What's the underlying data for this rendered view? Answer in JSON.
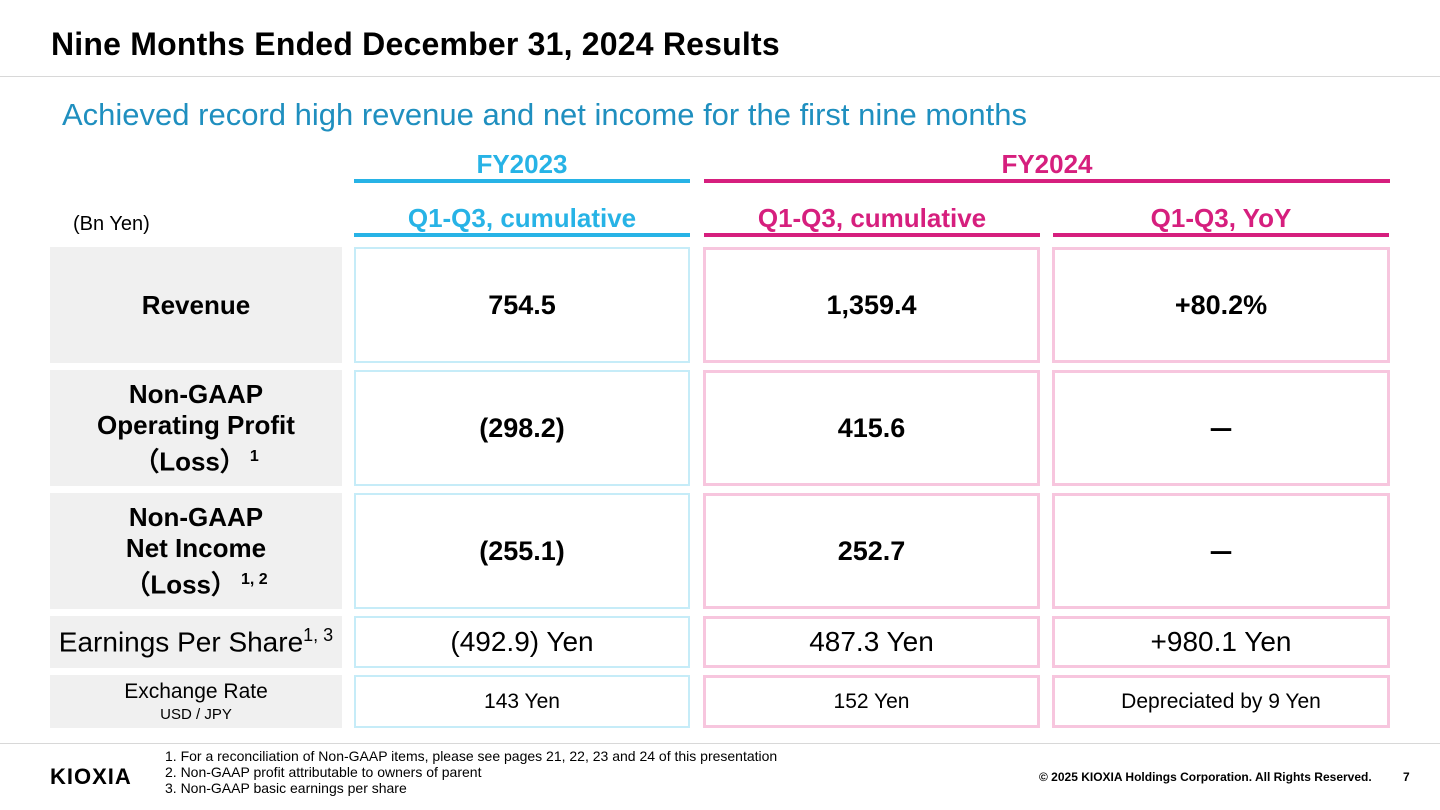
{
  "title": "Nine Months Ended December 31, 2024 Results",
  "subtitle": "Achieved record high revenue and net income for the first nine months",
  "unit_label": "(Bn Yen)",
  "group_headers": {
    "fy2023": "FY2023",
    "fy2024": "FY2024"
  },
  "column_headers": {
    "fy2023_cum": "Q1-Q3, cumulative",
    "fy2024_cum": "Q1-Q3, cumulative",
    "fy2024_yoy": "Q1-Q3, YoY"
  },
  "rows": [
    {
      "label": [
        "Revenue"
      ],
      "sup": "",
      "fy2023": "754.5",
      "fy2024": "1,359.4",
      "yoy": "+80.2%"
    },
    {
      "label": [
        "Non-GAAP",
        "Operating Profit",
        "（Loss）"
      ],
      "sup": "1",
      "fy2023": "(298.2)",
      "fy2024": "415.6",
      "yoy": "－"
    },
    {
      "label": [
        "Non-GAAP",
        "Net Income",
        "（Loss）"
      ],
      "sup": "1, 2",
      "fy2023": "(255.1)",
      "fy2024": "252.7",
      "yoy": "－"
    },
    {
      "label": [
        "Earnings Per Share"
      ],
      "sup": "1, 3",
      "fy2023": "(492.9) Yen",
      "fy2024": "487.3 Yen",
      "yoy": "+980.1 Yen"
    },
    {
      "label": [
        "Exchange Rate",
        "USD / JPY"
      ],
      "sup": "",
      "fy2023": "143 Yen",
      "fy2024": "152 Yen",
      "yoy": "Depreciated by 9 Yen"
    }
  ],
  "footnotes": [
    "1. For a reconciliation of Non-GAAP items, please see pages 21, 22, 23 and 24 of this presentation",
    "2. Non-GAAP profit attributable to owners of parent",
    "3. Non-GAAP basic earnings per share"
  ],
  "logo_text": "KIOXIA",
  "copyright": "© 2025 KIOXIA Holdings Corporation. All Rights Reserved.",
  "page_number": "7",
  "colors": {
    "fy2023_accent": "#27b3e6",
    "fy2024_accent": "#d61f7e",
    "subtitle": "#1f8fbf"
  }
}
